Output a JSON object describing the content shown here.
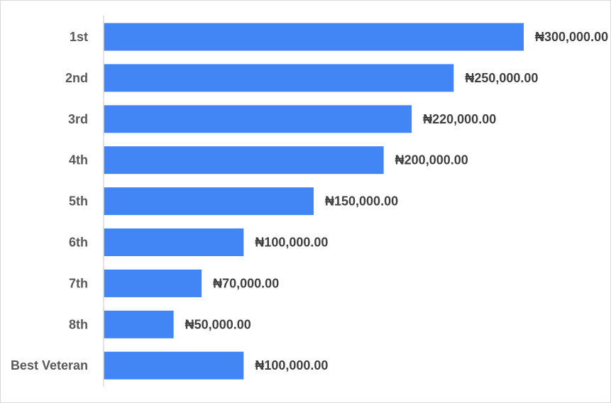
{
  "chart_data": {
    "type": "bar",
    "orientation": "horizontal",
    "categories": [
      "1st",
      "2nd",
      "3rd",
      "4th",
      "5th",
      "6th",
      "7th",
      "8th",
      "Best Veteran"
    ],
    "values": [
      300000,
      250000,
      220000,
      200000,
      150000,
      100000,
      70000,
      50000,
      100000
    ],
    "value_labels": [
      "₦300,000.00",
      "₦250,000.00",
      "₦220,000.00",
      "₦200,000.00",
      "₦150,000.00",
      "₦100,000.00",
      "₦70,000.00",
      "₦50,000.00",
      "₦100,000.00"
    ],
    "title": "",
    "xlabel": "",
    "ylabel": "",
    "xlim": [
      0,
      300000
    ],
    "grid": false,
    "legend": "none",
    "bar_color": "#4285f4",
    "axis_color": "#d9d9d9"
  }
}
